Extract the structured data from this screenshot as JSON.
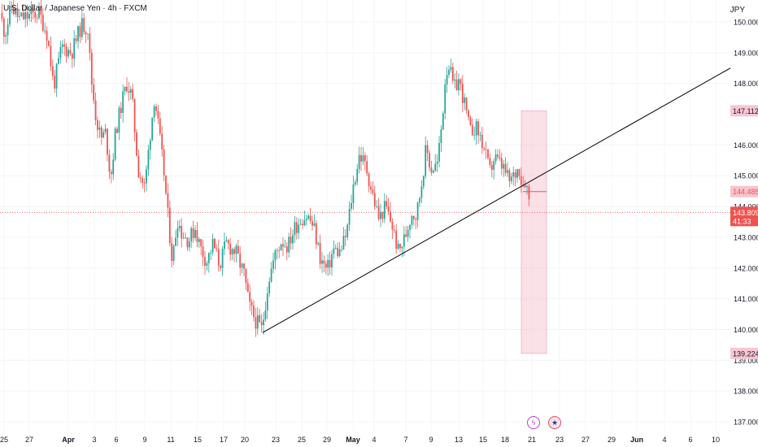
{
  "header": {
    "symbol": "U.S. Dollar / Japanese Yen · 4h · FXCM",
    "currency": "JPY"
  },
  "chart_data": {
    "type": "candlestick",
    "title": "U.S. Dollar / Japanese Yen · 4h · FXCM",
    "ylim": [
      136.8,
      150.4
    ],
    "y_ticks": [
      "150.000",
      "149.000",
      "148.000",
      "146.000",
      "145.000",
      "144.000",
      "143.000",
      "142.000",
      "141.000",
      "140.000",
      "139.000",
      "138.000",
      "137.000"
    ],
    "x_ticks": [
      "25",
      "27",
      "Apr",
      "3",
      "6",
      "9",
      "11",
      "15",
      "17",
      "20",
      "23",
      "25",
      "29",
      "May",
      "4",
      "7",
      "9",
      "13",
      "15",
      "18",
      "21",
      "23",
      "27",
      "29",
      "Jun",
      "4",
      "6",
      "10"
    ],
    "price_path": [
      [
        0,
        150.3
      ],
      [
        6,
        149.6
      ],
      [
        14,
        150.5
      ],
      [
        24,
        150.1
      ],
      [
        36,
        150.2
      ],
      [
        48,
        150.3
      ],
      [
        58,
        149.6
      ],
      [
        66,
        147.9
      ],
      [
        76,
        149.2
      ],
      [
        88,
        149.0
      ],
      [
        100,
        149.9
      ],
      [
        108,
        149.8
      ],
      [
        112,
        148.2
      ],
      [
        118,
        146.9
      ],
      [
        124,
        146.2
      ],
      [
        130,
        146.4
      ],
      [
        136,
        144.9
      ],
      [
        142,
        146.4
      ],
      [
        150,
        147.4
      ],
      [
        156,
        148.0
      ],
      [
        162,
        147.6
      ],
      [
        170,
        145.2
      ],
      [
        178,
        144.6
      ],
      [
        184,
        146.2
      ],
      [
        190,
        147.6
      ],
      [
        196,
        146.3
      ],
      [
        202,
        145.0
      ],
      [
        206,
        143.8
      ],
      [
        212,
        142.2
      ],
      [
        218,
        143.6
      ],
      [
        224,
        143.1
      ],
      [
        232,
        142.9
      ],
      [
        240,
        143.3
      ],
      [
        246,
        142.7
      ],
      [
        254,
        142.2
      ],
      [
        262,
        142.8
      ],
      [
        270,
        142.1
      ],
      [
        278,
        142.8
      ],
      [
        290,
        142.5
      ],
      [
        300,
        141.8
      ],
      [
        306,
        140.8
      ],
      [
        314,
        140.3
      ],
      [
        322,
        140.0
      ],
      [
        330,
        141.6
      ],
      [
        338,
        142.4
      ],
      [
        346,
        142.9
      ],
      [
        354,
        142.7
      ],
      [
        362,
        143.3
      ],
      [
        370,
        143.6
      ],
      [
        378,
        143.7
      ],
      [
        386,
        143.3
      ],
      [
        394,
        142.3
      ],
      [
        402,
        141.9
      ],
      [
        410,
        142.6
      ],
      [
        418,
        142.5
      ],
      [
        426,
        143.1
      ],
      [
        434,
        144.6
      ],
      [
        442,
        145.7
      ],
      [
        450,
        145.3
      ],
      [
        458,
        144.4
      ],
      [
        466,
        143.6
      ],
      [
        474,
        144.0
      ],
      [
        482,
        143.4
      ],
      [
        490,
        142.5
      ],
      [
        498,
        143.0
      ],
      [
        506,
        143.8
      ],
      [
        512,
        143.7
      ],
      [
        518,
        144.7
      ],
      [
        524,
        145.9
      ],
      [
        530,
        145.2
      ],
      [
        538,
        145.4
      ],
      [
        544,
        146.9
      ],
      [
        548,
        148.4
      ],
      [
        552,
        148.6
      ],
      [
        558,
        147.8
      ],
      [
        564,
        148.1
      ],
      [
        570,
        147.5
      ],
      [
        578,
        146.4
      ],
      [
        584,
        146.6
      ],
      [
        590,
        146.3
      ],
      [
        596,
        145.8
      ],
      [
        602,
        145.1
      ],
      [
        608,
        145.6
      ],
      [
        614,
        145.4
      ],
      [
        620,
        145.2
      ],
      [
        626,
        144.8
      ],
      [
        632,
        145.0
      ],
      [
        638,
        145.3
      ],
      [
        642,
        144.7
      ],
      [
        646,
        144.9
      ],
      [
        650,
        144.3
      ],
      [
        654,
        143.8
      ]
    ],
    "trendline": {
      "from": [
        323,
        139.9
      ],
      "to": [
        898,
        148.5
      ]
    },
    "current_price": "143.809",
    "countdown": "41:33",
    "labels": {
      "target": "147.112",
      "entry": "144.485",
      "stop": "139.224"
    },
    "colors": {
      "up": "#26a69a",
      "down": "#ef5350",
      "zone": "#f8c7d4",
      "trend": "#000000"
    }
  },
  "events": [
    {
      "icon": "lightning-icon",
      "glyph": "ϟ"
    },
    {
      "icon": "us-flag-icon",
      "glyph": "★"
    }
  ]
}
